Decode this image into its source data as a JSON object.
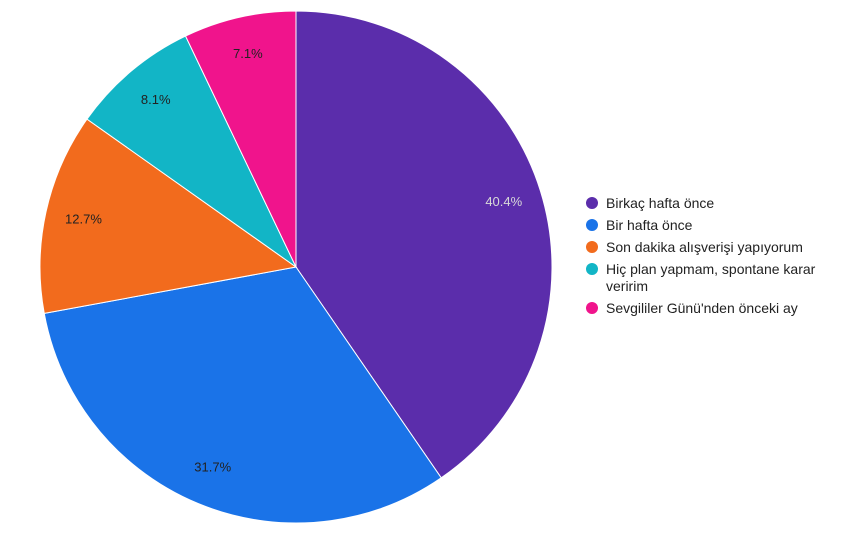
{
  "chart_data": {
    "type": "pie",
    "categories": [
      "Birkaç hafta önce",
      "Bir hafta önce",
      "Son dakika alışverişi yapıyorum",
      "Hiç plan yapmam, spontane karar veririm",
      "Sevgililer Günü'nden önceki ay"
    ],
    "values": [
      40.4,
      31.7,
      12.7,
      8.1,
      7.1
    ],
    "value_labels": [
      "40.4%",
      "31.7%",
      "12.7%",
      "8.1%",
      "7.1%"
    ],
    "colors": [
      "#5b2dab",
      "#1a73e8",
      "#f26b1d",
      "#12b5c6",
      "#f0148c"
    ],
    "legend": "right"
  }
}
